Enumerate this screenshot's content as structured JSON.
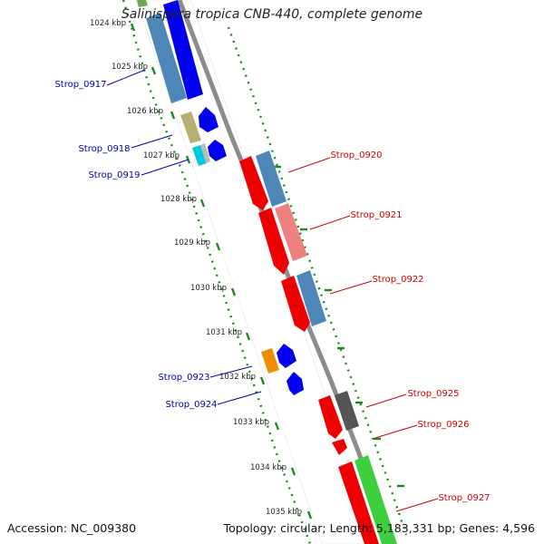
{
  "title": "Salinispora tropica CNB-440, complete genome",
  "accession": "Accession: NC_009380",
  "summary": "Topology: circular; Length: 5,183,331 bp; Genes: 4,596",
  "scale": {
    "labels": [
      "1024 kbp",
      "1025 kbp",
      "1026 kbp",
      "1027 kbp",
      "1028 kbp",
      "1029 kbp",
      "1030 kbp",
      "1031 kbp",
      "1032 kbp",
      "1033 kbp",
      "1034 kbp",
      "1035 kbp"
    ]
  },
  "gene_labels_left": [
    "Strop_0917",
    "Strop_0918",
    "Strop_0919",
    "Strop_0923",
    "Strop_0924"
  ],
  "gene_labels_right": [
    "Strop_0920",
    "Strop_0921",
    "Strop_0922",
    "Strop_0925",
    "Strop_0926",
    "Strop_0927"
  ],
  "colors": {
    "left_label": "#0000aa",
    "right_label": "#cc0000",
    "tick": "#1a8a1a",
    "backbone": "#8c8c8c",
    "forward_cds": "#0000ee",
    "reverse_cds": "#ee0000",
    "steelblue": "#4f86b8",
    "pink": "#ef8080",
    "olive": "#b8b070",
    "cyan": "#00c8e0",
    "orange": "#f08c00",
    "gray": "#555555",
    "green": "#3ecf3e"
  }
}
